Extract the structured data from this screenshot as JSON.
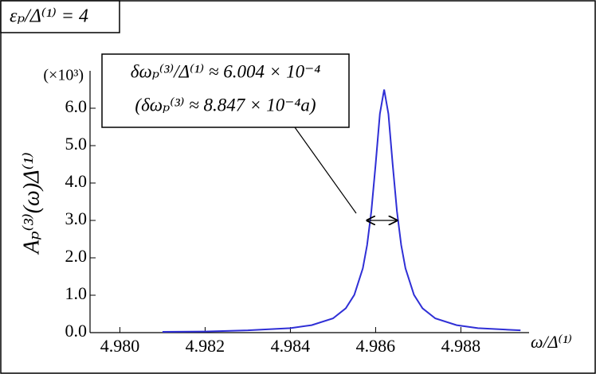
{
  "chart_data": {
    "type": "line",
    "title": "εₚ/Δ⁽¹⁾ = 4",
    "annotations": [
      "δωₚ⁽³⁾/Δ⁽¹⁾ ≈ 6.004 × 10⁻⁴",
      "(δωₚ⁽³⁾ ≈ 8.847 × 10⁻⁴a)"
    ],
    "x_label": "ω/Δ⁽¹⁾",
    "y_label": "Aₚ⁽³⁾(ω)Δ⁽¹⁾",
    "y_scale_label": "(×10³)",
    "x": [
      4.981,
      4.982,
      4.983,
      4.984,
      4.9845,
      4.985,
      4.9853,
      4.9855,
      4.9857,
      4.9858,
      4.9859,
      4.986,
      4.9861,
      4.9862,
      4.9863,
      4.9864,
      4.9865,
      4.9866,
      4.9867,
      4.9869,
      4.9871,
      4.9874,
      4.9879,
      4.9884,
      4.9894
    ],
    "series": [
      {
        "color": "#2f2fd6",
        "values": [
          0.02,
          0.03,
          0.06,
          0.12,
          0.2,
          0.38,
          0.65,
          1.01,
          1.72,
          2.34,
          3.25,
          4.5,
          5.85,
          6.5,
          5.85,
          4.5,
          3.25,
          2.34,
          1.72,
          1.01,
          0.65,
          0.38,
          0.2,
          0.12,
          0.06
        ]
      }
    ],
    "fwhm": {
      "x_start": 4.9858,
      "x_end": 4.9865,
      "y": 3.0
    },
    "xlim": [
      4.9793,
      4.9896
    ],
    "ylim": [
      0,
      7
    ],
    "xticks": [
      {
        "value": 4.98,
        "label": "4.980"
      },
      {
        "value": 4.982,
        "label": "4.982"
      },
      {
        "value": 4.984,
        "label": "4.984"
      },
      {
        "value": 4.986,
        "label": "4.986"
      },
      {
        "value": 4.988,
        "label": "4.988"
      }
    ],
    "yticks": [
      {
        "value": 0,
        "label": "0.0"
      },
      {
        "value": 1,
        "label": "1.0"
      },
      {
        "value": 2,
        "label": "2.0"
      },
      {
        "value": 3,
        "label": "3.0"
      },
      {
        "value": 4,
        "label": "4.0"
      },
      {
        "value": 5,
        "label": "5.0"
      },
      {
        "value": 6,
        "label": "6.0"
      }
    ]
  }
}
